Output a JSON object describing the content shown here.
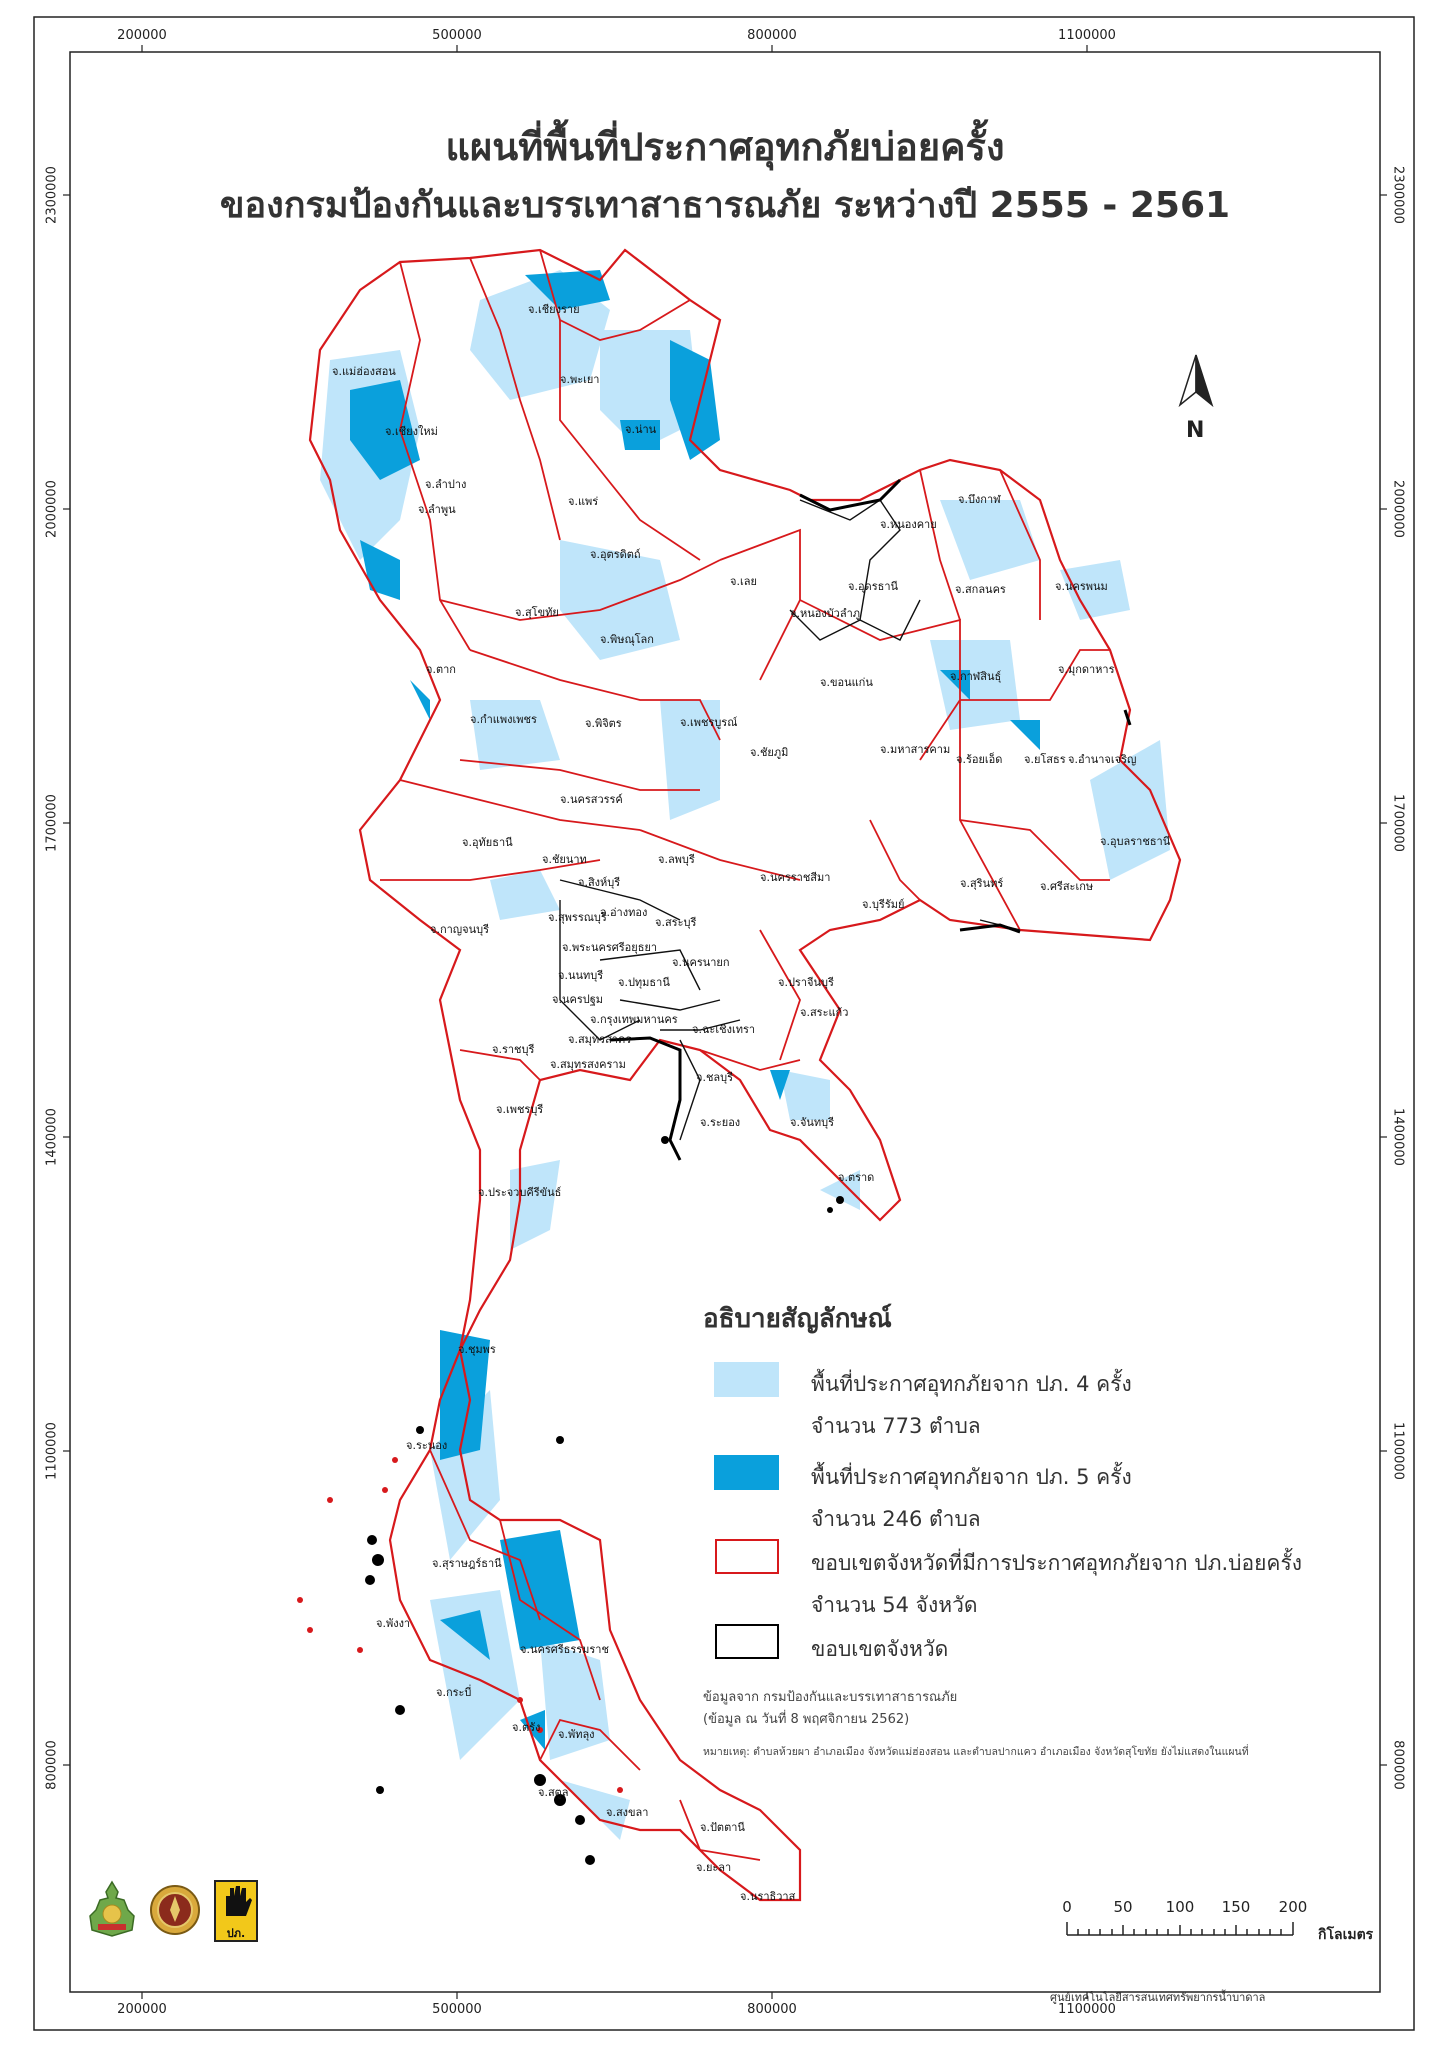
{
  "title": {
    "line1": "แผนที่พื้นที่ประกาศอุทกภัยบ่อยครั้ง",
    "line2": "ของกรมป้องกันและบรรเทาสาธารณภัย ระหว่างปี 2555 - 2561"
  },
  "grid": {
    "x_labels": [
      "200000",
      "500000",
      "800000",
      "1100000"
    ],
    "y_labels": [
      "2300000",
      "2000000",
      "1700000",
      "1400000",
      "1100000",
      "800000"
    ]
  },
  "north_arrow": {
    "letter": "N",
    "icon": "north-arrow-icon"
  },
  "provinces": [
    "จ.เชียงราย",
    "จ.แม่ฮ่องสอน",
    "จ.พะเยา",
    "จ.เชียงใหม่",
    "จ.น่าน",
    "จ.ลำปาง",
    "จ.ลำพูน",
    "จ.แพร่",
    "จ.บึงกาฬ",
    "จ.หนองคาย",
    "จ.อุตรดิตถ์",
    "จ.เลย",
    "จ.อุดรธานี",
    "จ.สกลนคร",
    "จ.นครพนม",
    "จ.สุโขทัย",
    "จ.หนองบัวลำภู",
    "จ.พิษณุโลก",
    "จ.ตาก",
    "จ.กาฬสินธุ์",
    "จ.ขอนแก่น",
    "จ.มุกดาหาร",
    "จ.กำแพงเพชร",
    "จ.พิจิตร",
    "จ.เพชรบูรณ์",
    "จ.ชัยภูมิ",
    "จ.มหาสารคาม",
    "จ.ร้อยเอ็ด",
    "จ.ยโสธร",
    "จ.อำนาจเจริญ",
    "จ.นครสวรรค์",
    "จ.อุบลราชธานี",
    "จ.อุทัยธานี",
    "จ.ชัยนาท",
    "จ.ลพบุรี",
    "จ.สิงห์บุรี",
    "จ.นครราชสีมา",
    "จ.สุรินทร์",
    "จ.ศรีสะเกษ",
    "จ.บุรีรัมย์",
    "จ.อ่างทอง",
    "จ.สระบุรี",
    "จ.สุพรรณบุรี",
    "จ.กาญจนบุรี",
    "จ.พระนครศรีอยุธยา",
    "จ.นครนายก",
    "จ.นนทบุรี",
    "จ.ปทุมธานี",
    "จ.ปราจีนบุรี",
    "จ.นครปฐม",
    "จ.กรุงเทพมหานคร",
    "จ.สระแก้ว",
    "จ.สมุทรสาคร",
    "จ.ฉะเชิงเทรา",
    "จ.ราชบุรี",
    "จ.สมุทรสงคราม",
    "จ.ชลบุรี",
    "จ.เพชรบุรี",
    "จ.ระยอง",
    "จ.จันทบุรี",
    "จ.ตราด",
    "จ.ประจวบคีรีขันธ์",
    "จ.ชุมพร",
    "จ.ระนอง",
    "จ.สุราษฎร์ธานี",
    "จ.พังงา",
    "จ.นครศรีธรรมราช",
    "จ.กระบี่",
    "จ.ตรัง",
    "จ.พัทลุง",
    "จ.สตูล",
    "จ.สงขลา",
    "จ.ปัตตานี",
    "จ.ยะลา",
    "จ.นราธิวาส"
  ],
  "legend": {
    "title": "อธิบายสัญลักษณ์",
    "items": [
      {
        "line1": "พื้นที่ประกาศอุทกภัยจาก ปภ. 4 ครั้ง",
        "line2": "จำนวน 773 ตำบล",
        "color": "#bfe5fa"
      },
      {
        "line1": "พื้นที่ประกาศอุทกภัยจาก ปภ. 5 ครั้ง",
        "line2": "จำนวน 246 ตำบล",
        "color": "#0aa0dc"
      },
      {
        "line1": "ขอบเขตจังหวัดที่มีการประกาศอุทกภัยจาก ปภ.บ่อยครั้ง",
        "line2": "จำนวน 54 จังหวัด",
        "color": "#d7191c"
      },
      {
        "line1": "ขอบเขตจังหวัด",
        "line2": "",
        "color": "#000000"
      }
    ]
  },
  "source": {
    "line1": "ข้อมูลจาก กรมป้องกันและบรรเทาสาธารณภัย",
    "line2": "(ข้อมูล ณ วันที่ 8 พฤศจิกายน 2562)",
    "remark": "หมายเหตุ: ตำบลห้วยผา อำเภอเมือง จังหวัดแม่ฮ่องสอน และตำบลปากแคว อำเภอเมือง จังหวัดสุโขทัย ยังไม่แสดงในแผนที่"
  },
  "scale_bar": {
    "labels": [
      "0",
      "50",
      "100",
      "150",
      "200"
    ],
    "unit": "กิโลเมตร"
  },
  "credit": "ศูนย์เทคโนโลยีสารสนเทศทรัพยากรน้ำบาดาล",
  "logos": [
    "ministry-emblem-icon",
    "department-seal-icon",
    "ddpm-hand-logo-icon"
  ],
  "logo_text": "ปภ."
}
